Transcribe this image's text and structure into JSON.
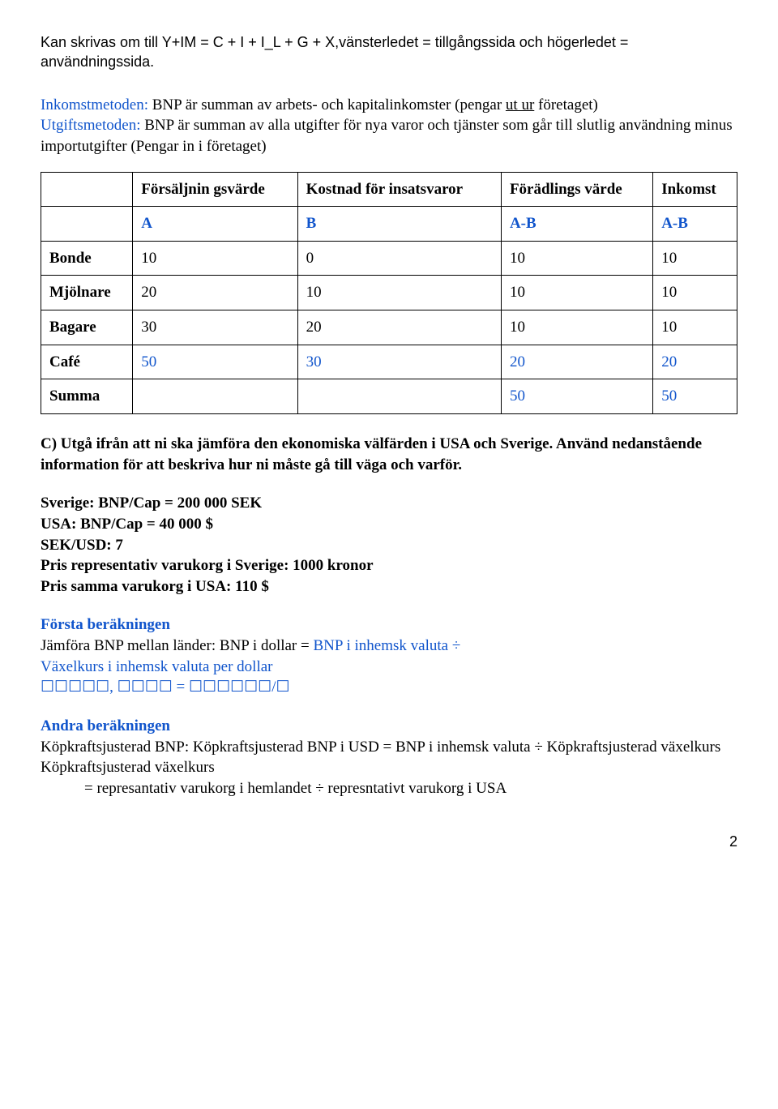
{
  "intro": {
    "line": "Kan skrivas om till Y+IM = C + I + I_L + G + X,vänsterledet = tillgångssida och högerledet = användningssida."
  },
  "methods": {
    "ink_label": "Inkomstmetoden:",
    "ink_text": "BNP är summan av arbets- och kapitalinkomster (pengar ",
    "ink_uline": "ut ur",
    "ink_text2": " företaget)",
    "utg_label": "Utgiftsmetoden:",
    "utg_text": " BNP är summan av alla utgifter för nya varor och tjänster som går till slutlig användning minus importutgifter (Pengar in i företaget)"
  },
  "table": {
    "headers": [
      "",
      "Försäljnin gsvärde",
      "Kostnad för insatsvaror",
      "Förädlings värde",
      "Inkomst"
    ],
    "formula_row": [
      "",
      "A",
      "B",
      "A-B",
      "A-B"
    ],
    "rows": [
      {
        "label": "Bonde",
        "a": "10",
        "b": "0",
        "ab1": "10",
        "ab2": "10",
        "blue": false
      },
      {
        "label": "Mjölnare",
        "a": "20",
        "b": "10",
        "ab1": "10",
        "ab2": "10",
        "blue": false
      },
      {
        "label": "Bagare",
        "a": "30",
        "b": "20",
        "ab1": "10",
        "ab2": "10",
        "blue": false
      },
      {
        "label": "Café",
        "a": "50",
        "b": "30",
        "ab1": "20",
        "ab2": "20",
        "blue": true
      }
    ],
    "sum_label": "Summa",
    "sum_ab1": "50",
    "sum_ab2": "50"
  },
  "sectionC": {
    "text": "C) Utgå ifrån att ni ska jämföra den ekonomiska välfärden i USA och Sverige. Använd nedanstående information för att beskriva hur ni måste gå till väga och varför."
  },
  "info": {
    "l1": "Sverige: BNP/Cap = 200 000 SEK",
    "l2": "USA: BNP/Cap = 40 000 $",
    "l3": "SEK/USD: 7",
    "l4": "Pris representativ varukorg i Sverige: 1000 kronor",
    "l5": "Pris samma varukorg i USA: 110 $"
  },
  "calc1": {
    "title": "Första beräkningen",
    "l1a": "Jämföra BNP mellan länder: BNP i dollar = ",
    "l1b": "BNP i inhemsk valuta ÷",
    "l2": "Växelkurs i inhemsk valuta per dollar",
    "l3": "☐☐☐☐☐, ☐☐☐☐ = ☐☐☐☐☐☐/☐"
  },
  "calc2": {
    "title": "Andra beräkningen",
    "l1": "Köpkraftsjusterad BNP: Köpkraftsjusterad BNP i USD = BNP i inhemsk valuta ÷ Köpkraftsjusterad växelkurs",
    "l2": "Köpkraftsjusterad växelkurs",
    "l3": "= represantativ varukorg i hemlandet ÷ represntativt varukorg i USA"
  },
  "pagenum": "2"
}
